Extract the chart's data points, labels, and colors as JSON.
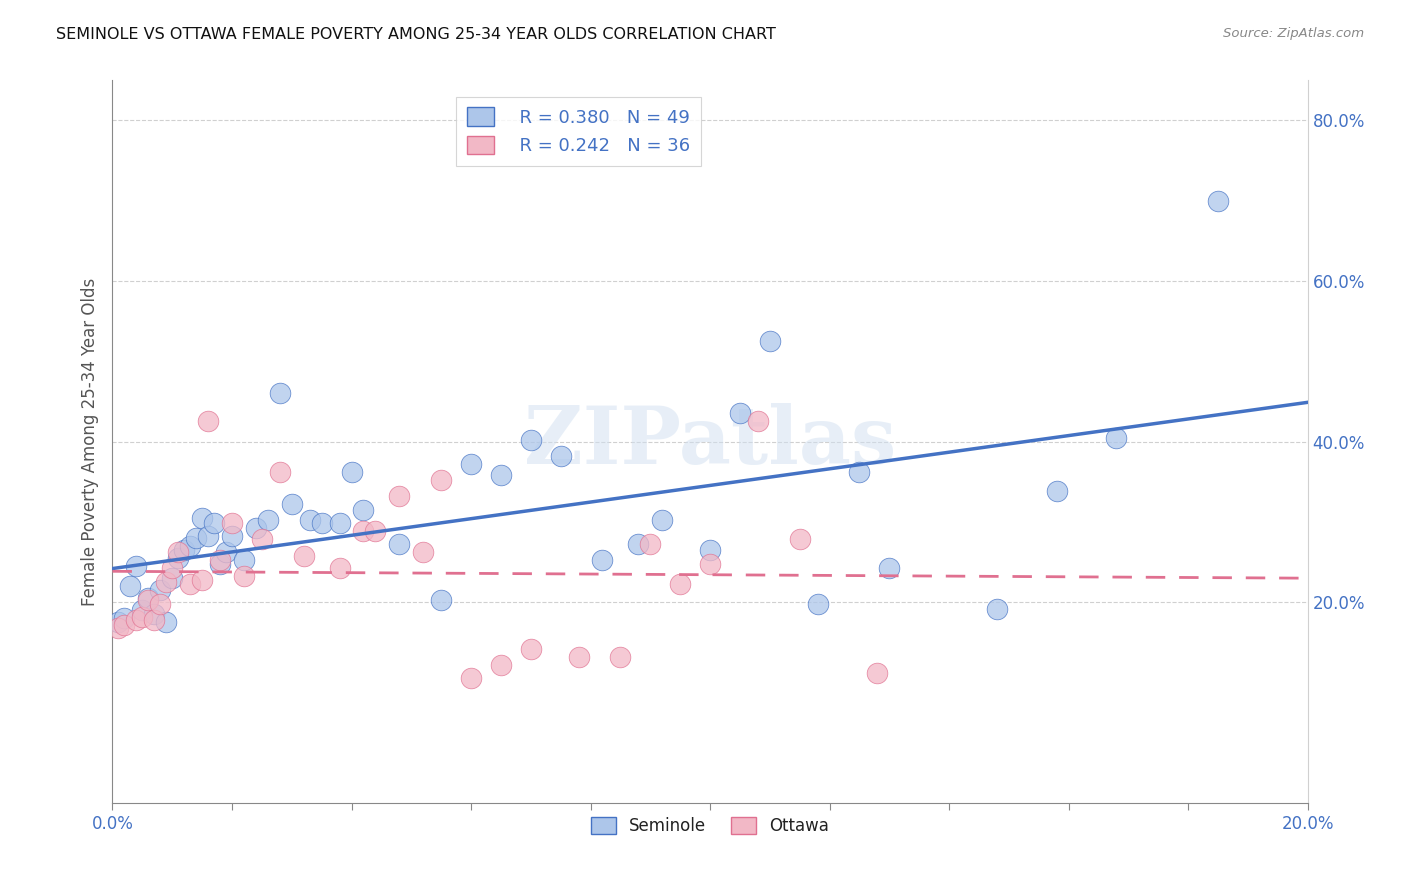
{
  "title": "SEMINOLE VS OTTAWA FEMALE POVERTY AMONG 25-34 YEAR OLDS CORRELATION CHART",
  "source": "Source: ZipAtlas.com",
  "ylabel": "Female Poverty Among 25-34 Year Olds",
  "xlim": [
    0.0,
    0.2
  ],
  "ylim": [
    -0.05,
    0.85
  ],
  "ytick_vals": [
    0.2,
    0.4,
    0.6,
    0.8
  ],
  "seminole_R": 0.38,
  "seminole_N": 49,
  "ottawa_R": 0.242,
  "ottawa_N": 36,
  "seminole_color": "#adc6ea",
  "ottawa_color": "#f2b8c6",
  "seminole_line_color": "#4472c4",
  "ottawa_line_color": "#e07090",
  "watermark": "ZIPatlas",
  "seminole_x": [
    0.001,
    0.002,
    0.003,
    0.004,
    0.005,
    0.006,
    0.007,
    0.008,
    0.009,
    0.01,
    0.011,
    0.012,
    0.013,
    0.014,
    0.015,
    0.016,
    0.017,
    0.018,
    0.019,
    0.02,
    0.022,
    0.024,
    0.026,
    0.028,
    0.03,
    0.033,
    0.035,
    0.038,
    0.04,
    0.042,
    0.048,
    0.055,
    0.06,
    0.065,
    0.07,
    0.075,
    0.082,
    0.088,
    0.092,
    0.1,
    0.105,
    0.11,
    0.118,
    0.125,
    0.13,
    0.148,
    0.158,
    0.168,
    0.185
  ],
  "seminole_y": [
    0.175,
    0.18,
    0.22,
    0.245,
    0.19,
    0.205,
    0.185,
    0.215,
    0.175,
    0.23,
    0.255,
    0.265,
    0.27,
    0.28,
    0.305,
    0.282,
    0.298,
    0.248,
    0.262,
    0.282,
    0.252,
    0.292,
    0.302,
    0.46,
    0.322,
    0.302,
    0.298,
    0.298,
    0.362,
    0.315,
    0.272,
    0.202,
    0.372,
    0.358,
    0.402,
    0.382,
    0.252,
    0.272,
    0.302,
    0.265,
    0.435,
    0.525,
    0.198,
    0.362,
    0.242,
    0.192,
    0.338,
    0.405,
    0.7
  ],
  "ottawa_x": [
    0.001,
    0.002,
    0.004,
    0.005,
    0.006,
    0.007,
    0.008,
    0.009,
    0.01,
    0.011,
    0.013,
    0.015,
    0.016,
    0.018,
    0.02,
    0.022,
    0.025,
    0.028,
    0.032,
    0.038,
    0.042,
    0.044,
    0.048,
    0.052,
    0.055,
    0.06,
    0.065,
    0.07,
    0.078,
    0.085,
    0.09,
    0.095,
    0.1,
    0.108,
    0.115,
    0.128
  ],
  "ottawa_y": [
    0.168,
    0.172,
    0.178,
    0.182,
    0.202,
    0.178,
    0.198,
    0.225,
    0.242,
    0.262,
    0.222,
    0.228,
    0.425,
    0.252,
    0.298,
    0.232,
    0.278,
    0.362,
    0.258,
    0.242,
    0.288,
    0.288,
    0.332,
    0.262,
    0.352,
    0.105,
    0.122,
    0.142,
    0.132,
    0.132,
    0.272,
    0.222,
    0.248,
    0.425,
    0.278,
    0.112
  ],
  "background_color": "#ffffff",
  "grid_color": "#d0d0d0"
}
